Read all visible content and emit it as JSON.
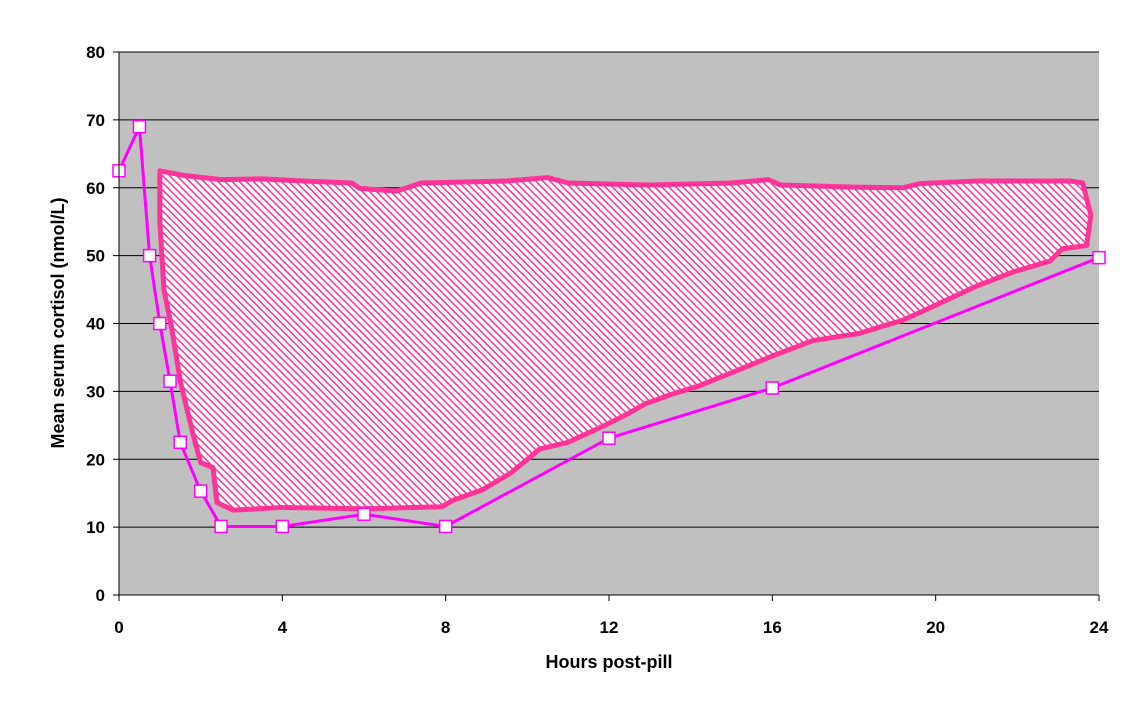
{
  "chart_data": {
    "type": "line",
    "title": "",
    "xlabel": "Hours post-pill",
    "ylabel": "Mean serum cortisol (nmol/L)",
    "xlim": [
      0,
      24
    ],
    "ylim": [
      0,
      80
    ],
    "x_ticks": [
      0,
      4,
      8,
      12,
      16,
      20,
      24
    ],
    "y_ticks": [
      0,
      10,
      20,
      30,
      40,
      50,
      60,
      70,
      80
    ],
    "grid": "horizontal",
    "colors": {
      "plot_background": "#c0c0c0",
      "series_line": "#ff00ff",
      "marker_fill": "#ffffff",
      "region_outline": "#ff3399",
      "region_hatch": "#ff3399"
    },
    "series": [
      {
        "x": [
          0,
          0.5,
          0.75,
          1,
          1.25,
          1.5,
          2,
          2.5,
          4,
          6,
          8,
          12,
          16,
          24
        ],
        "values": [
          62.5,
          69,
          50,
          40,
          31.5,
          22.5,
          15.3,
          10.1,
          10.1,
          11.9,
          10.1,
          23.1,
          30.5,
          49.7
        ],
        "marker": "square"
      }
    ],
    "shaded_region": {
      "upper": {
        "x": [
          1.0,
          1.6,
          2.5,
          3.5,
          4.5,
          5.7,
          5.9,
          6.8,
          7.4,
          9.5,
          10.5,
          11.0,
          13.0,
          15.0,
          15.9,
          16.2,
          18.0,
          19.2,
          19.6,
          21.0,
          22.0,
          23.3,
          23.6,
          23.8
        ],
        "values": [
          62.5,
          61.8,
          61.2,
          61.3,
          61.0,
          60.7,
          59.9,
          59.5,
          60.7,
          61.0,
          61.5,
          60.7,
          60.4,
          60.7,
          61.2,
          60.4,
          60.1,
          60.0,
          60.6,
          61.0,
          61.0,
          61.0,
          60.7,
          56.0
        ]
      },
      "lower": {
        "x": [
          23.7,
          23.1,
          22.8,
          21.9,
          21.0,
          20.0,
          19.2,
          18.1,
          17.0,
          16.0,
          15.1,
          14.2,
          13.5,
          12.9,
          12.4,
          11.9,
          11.0,
          10.3,
          9.6,
          8.9,
          8.2,
          7.9,
          6.0,
          4.0,
          2.8,
          2.4,
          2.3,
          2.0,
          1.8,
          1.5,
          1.3,
          1.1,
          1.0
        ],
        "values": [
          51.5,
          51.0,
          49.2,
          47.6,
          45.5,
          42.7,
          40.5,
          38.5,
          37.5,
          35.2,
          33.0,
          30.8,
          29.5,
          28.2,
          26.5,
          25.0,
          22.5,
          21.5,
          18.0,
          15.5,
          14.0,
          13.0,
          12.7,
          12.9,
          12.5,
          13.6,
          18.8,
          19.5,
          24.0,
          31.5,
          39.0,
          45.0,
          55.0
        ]
      }
    }
  }
}
